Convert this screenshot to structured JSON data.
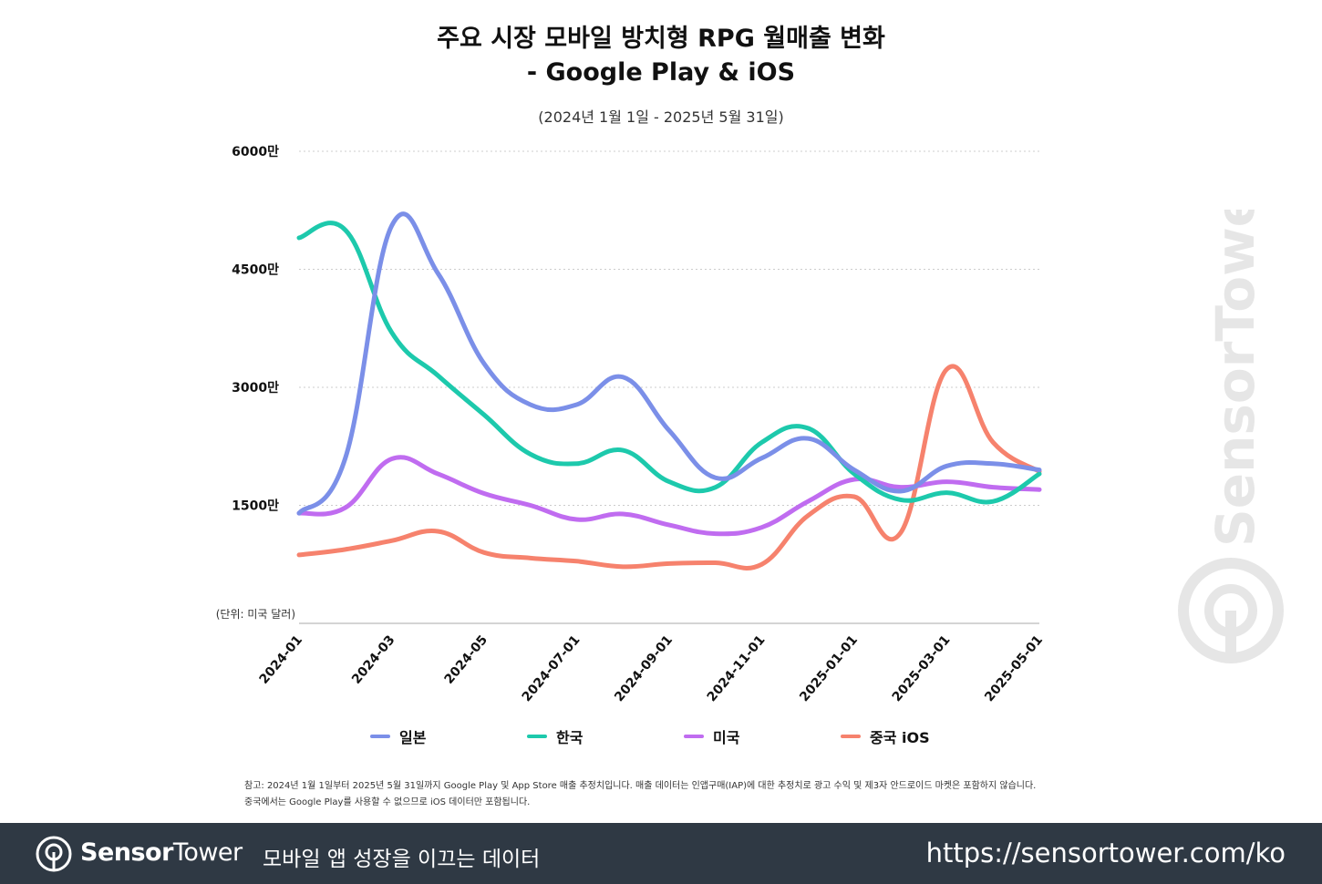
{
  "title_line1": "주요 시장 모바일 방치형 RPG 월매출 변화",
  "title_line2": "- Google Play & iOS",
  "subtitle": "(2024년 1월 1일 - 2025년 5월 31일)",
  "unit_label": "(단위: 미국 달러)",
  "notes": {
    "line1": "참고: 2024년 1월 1일부터 2025년 5월 31일까지 Google Play 및 App Store 매출 추정치입니다. 매출 데이터는 인앱구매(IAP)에 대한 추정치로 광고 수익 및 제3자 안드로이드 마켓은 포함하지 않습니다.",
    "line2": "중국에서는 Google Play를 사용할 수 없으므로 iOS 데이터만 포함됩니다."
  },
  "footer": {
    "brand_bold": "Sensor",
    "brand_light": "Tower",
    "tagline": "모바일 앱 성장을 이끄는 데이터",
    "url": "https://sensortower.com/ko"
  },
  "watermark": "SensorTower",
  "colors": {
    "japan": "#7b8fe8",
    "korea": "#1dc9ac",
    "usa": "#c06cf0",
    "china_ios": "#f6826d",
    "grid": "#cccccc",
    "footer_bg": "#2f3944",
    "watermark": "#e6e6e6"
  },
  "chart_data": {
    "type": "line",
    "title": "주요 시장 모바일 방치형 RPG 월매출 변화 - Google Play & iOS",
    "subtitle": "(2024년 1월 1일 - 2025년 5월 31일)",
    "xlabel": "",
    "ylabel": "(단위: 미국 달러)",
    "ylim": [
      0,
      60000000
    ],
    "yticks": [
      15000000,
      30000000,
      45000000,
      60000000
    ],
    "ytick_labels": [
      "1500만",
      "3000만",
      "4500만",
      "6000만"
    ],
    "grid": true,
    "legend_position": "bottom",
    "x": [
      "2024-01",
      "2024-02",
      "2024-03",
      "2024-04",
      "2024-05",
      "2024-06",
      "2024-07",
      "2024-08",
      "2024-09",
      "2024-10",
      "2024-11",
      "2024-12",
      "2025-01",
      "2025-02",
      "2025-03",
      "2025-04",
      "2025-05"
    ],
    "xtick_labels": [
      "2024-01",
      "2024-03",
      "2024-05",
      "2024-07-01",
      "2024-09-01",
      "2024-11-01",
      "2025-01-01",
      "2025-03-01",
      "2025-05-01"
    ],
    "xtick_positions": [
      "2024-01",
      "2024-03",
      "2024-05",
      "2024-07",
      "2024-09",
      "2024-11",
      "2025-01",
      "2025-03",
      "2025-05"
    ],
    "series": [
      {
        "name": "일본",
        "color_key": "japan",
        "values": [
          14000000,
          21000000,
          50500000,
          44500000,
          33000000,
          27800000,
          27800000,
          31300000,
          24500000,
          18500000,
          21000000,
          23500000,
          19500000,
          16800000,
          20000000,
          20300000,
          19500000
        ]
      },
      {
        "name": "한국",
        "color_key": "korea",
        "values": [
          49000000,
          50000000,
          37000000,
          31500000,
          26500000,
          21500000,
          20300000,
          22000000,
          18000000,
          17300000,
          23000000,
          24800000,
          19000000,
          15700000,
          16600000,
          15500000,
          19000000
        ]
      },
      {
        "name": "미국",
        "color_key": "usa",
        "values": [
          14000000,
          14700000,
          20900000,
          19000000,
          16500000,
          15000000,
          13200000,
          13900000,
          12500000,
          11400000,
          12200000,
          15500000,
          18300000,
          17300000,
          18000000,
          17300000,
          17000000
        ]
      },
      {
        "name": "중국 iOS",
        "color_key": "china_ios",
        "values": [
          8700000,
          9400000,
          10500000,
          11700000,
          9000000,
          8300000,
          7900000,
          7200000,
          7600000,
          7700000,
          7500000,
          13700000,
          16100000,
          11500000,
          32300000,
          23000000,
          19300000
        ]
      }
    ]
  }
}
